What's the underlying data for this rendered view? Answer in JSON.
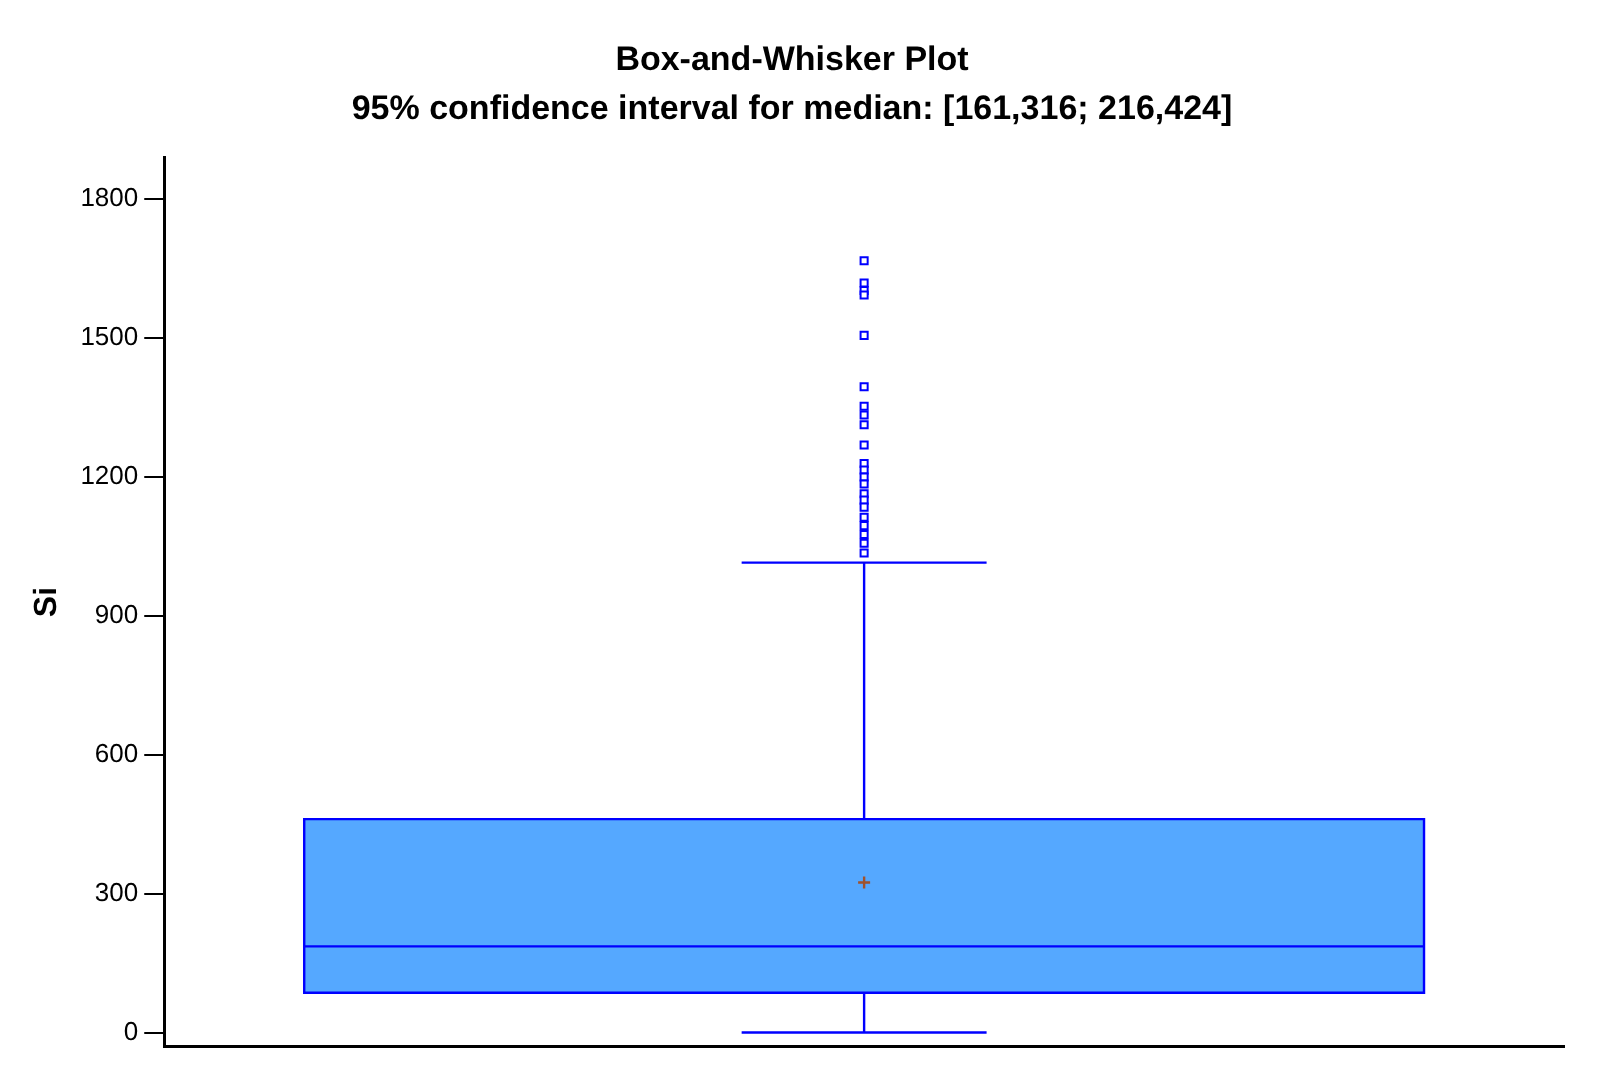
{
  "chart_data": {
    "type": "box",
    "title": "Box-and-Whisker Plot",
    "subtitle": "95% confidence interval for median: [161,316; 216,424]",
    "ylabel": "Si",
    "categories": [
      null
    ],
    "color": "#55a8ff",
    "boxes": [
      {
        "low": 0,
        "q1": 86,
        "median": 186,
        "q3": 461,
        "high": 1015,
        "mean": 324,
        "outliers": [
          1667,
          1619,
          1603,
          1593,
          1506,
          1395,
          1353,
          1334,
          1313,
          1269,
          1229,
          1215,
          1200,
          1185,
          1164,
          1150,
          1135,
          1113,
          1095,
          1076,
          1057,
          1036
        ]
      }
    ],
    "ylim": [
      -30,
      1890
    ],
    "yticks": [
      0,
      300,
      600,
      900,
      1200,
      1500,
      1800
    ],
    "tick_labels": "y",
    "grid": false,
    "legend": false
  }
}
